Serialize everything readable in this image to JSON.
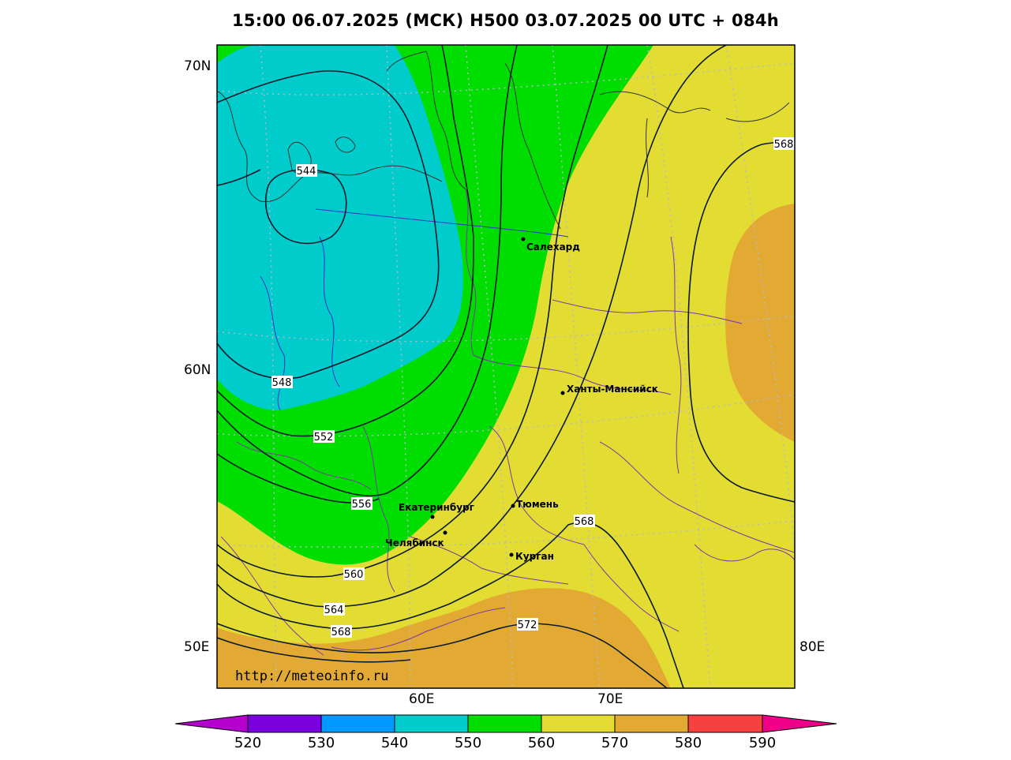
{
  "title": "15:00 06.07.2025 (МСК) H500  03.07.2025 00 UTC + 084h",
  "lat_labels": [
    "70N",
    "60N",
    "50E"
  ],
  "lon_labels": [
    "60E",
    "70E",
    "80E"
  ],
  "url": "http://meteoinfo.ru",
  "cities": [
    {
      "name": "Салехард"
    },
    {
      "name": "Ханты-Мансийск"
    },
    {
      "name": "Екатеринбург"
    },
    {
      "name": "Тюмень"
    },
    {
      "name": "Челябинск"
    },
    {
      "name": "Курган"
    }
  ],
  "contour_labels": [
    "544",
    "548",
    "552",
    "556",
    "560",
    "564",
    "568",
    "568",
    "572",
    "568"
  ],
  "colorbar": {
    "ticks": [
      "520",
      "530",
      "540",
      "550",
      "560",
      "570",
      "580",
      "590"
    ],
    "colors": [
      "#b300cc",
      "#7a00e0",
      "#0099ff",
      "#00cccc",
      "#00dd00",
      "#e3dd33",
      "#e3aa33",
      "#f74040",
      "#ee0088"
    ]
  }
}
